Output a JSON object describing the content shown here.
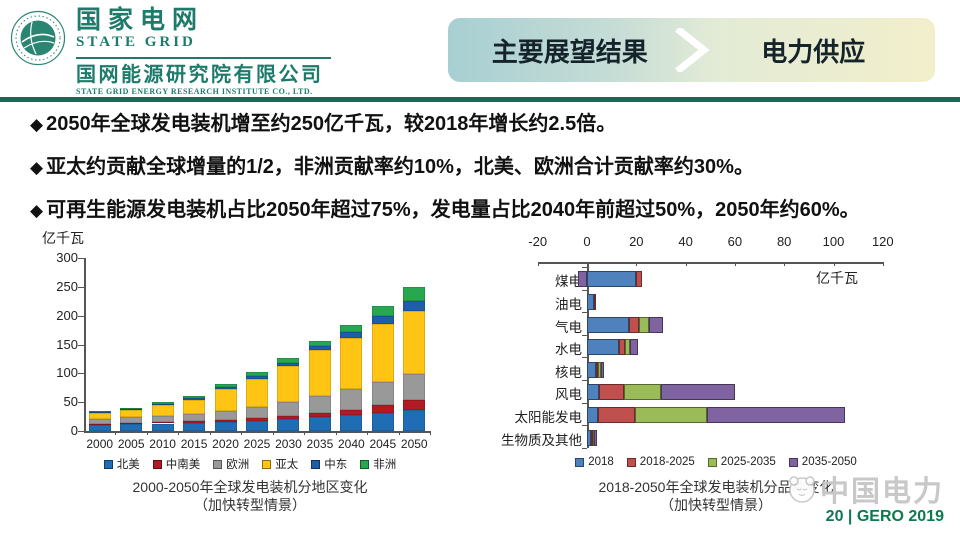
{
  "header": {
    "logo": {
      "title": "国家电网",
      "subtitle": "STATE GRID",
      "org": "国网能源研究院有限公司",
      "org_en": "STATE GRID ENERGY RESEARCH INSTITUTE CO., LTD."
    },
    "tab_left": "主要展望结果",
    "tab_right": "电力供应"
  },
  "bullet_marker": "◆",
  "bullets": [
    "2050年全球发电装机增至约250亿千瓦，较2018年增长约2.5倍。",
    "亚太约贡献全球增量的1/2，非洲贡献率约10%，北美、欧洲合计贡献率约30%。",
    "可再生能源发电装机占比2050年超过75%，发电量占比2040年前超过50%，2050年约60%。"
  ],
  "chart_data": [
    {
      "type": "bar",
      "stacked": true,
      "orientation": "vertical",
      "title": "2000-2050年全球发电装机分地区变化",
      "subtitle": "（加快转型情景）",
      "unit_label": "亿千瓦",
      "categories": [
        "2000",
        "2005",
        "2010",
        "2015",
        "2020",
        "2025",
        "2030",
        "2035",
        "2040",
        "2045",
        "2050"
      ],
      "series": [
        {
          "name": "北美",
          "color": "#1F6DB5",
          "values": [
            11,
            12,
            13,
            14,
            16,
            18,
            20,
            24,
            28,
            31,
            37
          ]
        },
        {
          "name": "中南美",
          "color": "#B01B24",
          "values": [
            1.5,
            2,
            2,
            2.5,
            3,
            4,
            6,
            7,
            9,
            14,
            16
          ]
        },
        {
          "name": "欧洲",
          "color": "#999999",
          "values": [
            8.5,
            9.5,
            11,
            13,
            16,
            20,
            24,
            29,
            35,
            40,
            45
          ]
        },
        {
          "name": "亚太",
          "color": "#FFC414",
          "values": [
            11,
            13.5,
            19,
            25,
            38,
            49,
            62,
            80,
            90,
            101,
            110
          ]
        },
        {
          "name": "中东",
          "color": "#1C5FA8",
          "values": [
            1,
            1.5,
            2,
            3,
            4,
            5,
            6,
            7,
            9,
            14,
            17
          ]
        },
        {
          "name": "非洲",
          "color": "#26A750",
          "values": [
            1.5,
            1.5,
            3,
            3.5,
            4,
            6,
            8,
            9,
            13,
            17,
            25
          ]
        }
      ],
      "ylim": [
        0,
        300
      ],
      "yticks": [
        0,
        50,
        100,
        150,
        200,
        250,
        300
      ],
      "grid": false,
      "legend_position": "bottom"
    },
    {
      "type": "bar",
      "stacked": true,
      "orientation": "horizontal",
      "title": "2018-2050年全球发电装机分品种变化",
      "subtitle": "（加快转型情景）",
      "unit_label": "亿千瓦",
      "categories": [
        "煤电",
        "油电",
        "气电",
        "水电",
        "核电",
        "风电",
        "太阳能发电",
        "生物质及其他"
      ],
      "series": [
        {
          "name": "2018",
          "color": "#4F81BD",
          "values": [
            20,
            3,
            17,
            13,
            3.5,
            5,
            4.5,
            1.5
          ]
        },
        {
          "name": "2018-2025",
          "color": "#C0504D",
          "values": [
            2.5,
            0.5,
            4,
            2.5,
            1,
            10,
            15,
            1
          ]
        },
        {
          "name": "2025-2035",
          "color": "#9BBB59",
          "values": [
            0,
            0,
            4,
            2,
            1,
            15,
            29,
            0.5
          ]
        },
        {
          "name": "2035-2050",
          "color": "#8064A2",
          "values": [
            -3.5,
            0,
            6,
            3,
            1.5,
            30,
            56,
            1
          ]
        }
      ],
      "xlim": [
        -20,
        120
      ],
      "xticks": [
        -20,
        0,
        20,
        40,
        60,
        80,
        100,
        120
      ],
      "grid": false,
      "legend_position": "bottom"
    }
  ],
  "footer": {
    "watermark": "中国电力",
    "page": "20 | GERO 2019"
  }
}
